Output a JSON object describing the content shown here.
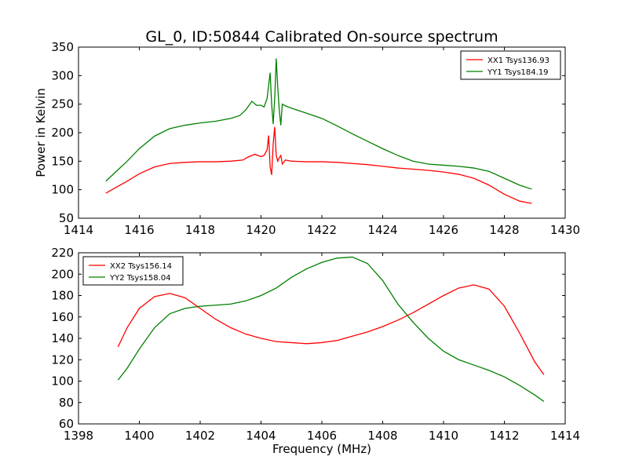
{
  "title": "GL_0, ID:50844 Calibrated On-source spectrum",
  "xlabel": "Frequency (MHz)",
  "ylabel": "Power in Kelvin",
  "colors": {
    "red": "#ff0000",
    "green": "#008000",
    "axis": "#000000",
    "background": "#ffffff"
  },
  "chart_data": [
    {
      "type": "line",
      "xlim": [
        1414,
        1430
      ],
      "ylim": [
        50,
        350
      ],
      "xticks": [
        1414,
        1416,
        1418,
        1420,
        1422,
        1424,
        1426,
        1428,
        1430
      ],
      "yticks": [
        50,
        100,
        150,
        200,
        250,
        300,
        350
      ],
      "ylabel": "Power in Kelvin",
      "grid": false,
      "legend_position": "top-right",
      "series": [
        {
          "name": "XX1 Tsys136.93",
          "color": "#ff0000",
          "x": [
            1414.9,
            1415.2,
            1415.6,
            1416.0,
            1416.5,
            1417.0,
            1417.5,
            1418.0,
            1418.5,
            1419.0,
            1419.4,
            1419.6,
            1419.8,
            1420.0,
            1420.1,
            1420.2,
            1420.25,
            1420.3,
            1420.35,
            1420.4,
            1420.45,
            1420.5,
            1420.55,
            1420.6,
            1420.65,
            1420.7,
            1420.8,
            1421.0,
            1421.5,
            1422.0,
            1422.5,
            1423.0,
            1423.5,
            1424.0,
            1424.5,
            1425.0,
            1425.5,
            1426.0,
            1426.5,
            1427.0,
            1427.5,
            1428.0,
            1428.5,
            1428.9
          ],
          "y": [
            94,
            103,
            115,
            128,
            140,
            146,
            148,
            149,
            149,
            150,
            152,
            158,
            162,
            158,
            160,
            170,
            195,
            140,
            126,
            180,
            210,
            160,
            150,
            156,
            160,
            145,
            152,
            150,
            149,
            149,
            148,
            146,
            144,
            141,
            138,
            136,
            134,
            131,
            127,
            120,
            108,
            92,
            80,
            76
          ]
        },
        {
          "name": "YY1 Tsys184.19",
          "color": "#008000",
          "x": [
            1414.9,
            1415.2,
            1415.6,
            1416.0,
            1416.5,
            1417.0,
            1417.5,
            1418.0,
            1418.5,
            1419.0,
            1419.3,
            1419.5,
            1419.7,
            1419.85,
            1420.0,
            1420.1,
            1420.2,
            1420.3,
            1420.35,
            1420.4,
            1420.45,
            1420.5,
            1420.55,
            1420.6,
            1420.65,
            1420.7,
            1420.8,
            1421.0,
            1421.5,
            1422.0,
            1422.5,
            1423.0,
            1423.5,
            1424.0,
            1424.5,
            1425.0,
            1425.5,
            1426.0,
            1426.5,
            1427.0,
            1427.5,
            1428.0,
            1428.5,
            1428.9
          ],
          "y": [
            115,
            130,
            150,
            172,
            194,
            207,
            213,
            217,
            220,
            225,
            230,
            240,
            255,
            248,
            248,
            245,
            260,
            305,
            250,
            215,
            260,
            330,
            280,
            240,
            213,
            250,
            247,
            243,
            234,
            225,
            212,
            198,
            185,
            172,
            160,
            150,
            145,
            143,
            141,
            138,
            132,
            120,
            108,
            101
          ]
        }
      ]
    },
    {
      "type": "line",
      "xlim": [
        1398,
        1414
      ],
      "ylim": [
        60,
        220
      ],
      "xticks": [
        1398,
        1400,
        1402,
        1404,
        1406,
        1408,
        1410,
        1412,
        1414
      ],
      "yticks": [
        60,
        80,
        100,
        120,
        140,
        160,
        180,
        200,
        220
      ],
      "xlabel": "Frequency (MHz)",
      "grid": false,
      "legend_position": "top-left",
      "series": [
        {
          "name": "XX2 Tsys156.14",
          "color": "#ff0000",
          "x": [
            1399.3,
            1399.6,
            1400.0,
            1400.5,
            1401.0,
            1401.5,
            1402.0,
            1402.5,
            1403.0,
            1403.5,
            1404.0,
            1404.5,
            1405.0,
            1405.5,
            1406.0,
            1406.5,
            1407.0,
            1407.5,
            1408.0,
            1408.5,
            1409.0,
            1409.5,
            1410.0,
            1410.5,
            1411.0,
            1411.5,
            1412.0,
            1412.5,
            1413.0,
            1413.3
          ],
          "y": [
            132,
            150,
            168,
            179,
            182,
            178,
            168,
            158,
            150,
            144,
            140,
            137,
            136,
            135,
            136,
            138,
            142,
            146,
            151,
            157,
            164,
            172,
            180,
            187,
            190,
            186,
            170,
            145,
            118,
            106
          ]
        },
        {
          "name": "YY2 Tsys158.04",
          "color": "#008000",
          "x": [
            1399.3,
            1399.6,
            1400.0,
            1400.5,
            1401.0,
            1401.5,
            1402.0,
            1402.5,
            1403.0,
            1403.5,
            1404.0,
            1404.5,
            1405.0,
            1405.5,
            1406.0,
            1406.5,
            1407.0,
            1407.5,
            1408.0,
            1408.5,
            1409.0,
            1409.5,
            1410.0,
            1410.5,
            1411.0,
            1411.5,
            1412.0,
            1412.5,
            1413.0,
            1413.3
          ],
          "y": [
            101,
            112,
            130,
            150,
            163,
            168,
            170,
            171,
            172,
            175,
            180,
            187,
            197,
            205,
            211,
            215,
            216,
            210,
            194,
            172,
            155,
            140,
            128,
            120,
            115,
            110,
            104,
            96,
            87,
            81
          ]
        }
      ]
    }
  ]
}
